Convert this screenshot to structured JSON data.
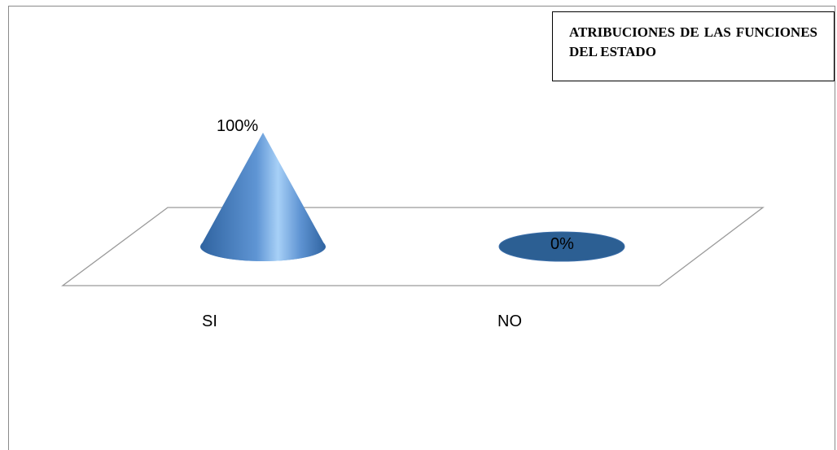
{
  "chart_data": {
    "type": "bar",
    "shape": "cone-3d",
    "title": "ATRIBUCIONES DE LAS FUNCIONES DEL ESTADO",
    "categories": [
      "SI",
      "NO"
    ],
    "values": [
      100,
      0
    ],
    "data_labels": [
      "100%",
      "0%"
    ],
    "ylim": [
      0,
      100
    ],
    "grid": false,
    "legend": "none",
    "colors": {
      "fill": "#4f81bd",
      "fill_light": "#9ec7f4",
      "fill_dark": "#2c5f93",
      "floor_stroke": "#9a9a9a"
    }
  }
}
